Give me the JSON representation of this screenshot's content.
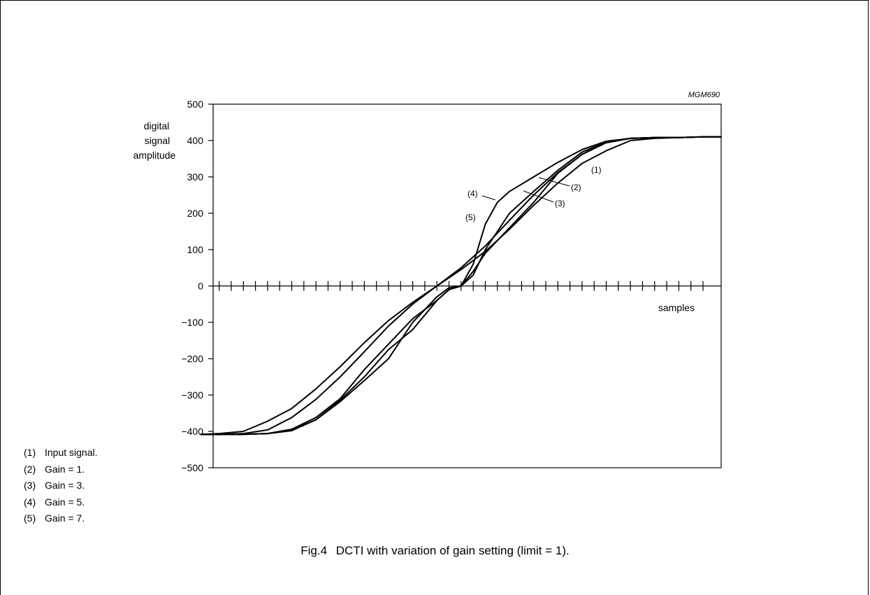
{
  "figure_id": "MGM690",
  "caption": {
    "number": "Fig.4",
    "text": "DCTI with variation of gain setting (limit = 1)."
  },
  "legend": [
    {
      "num": "(1)",
      "text": "Input signal."
    },
    {
      "num": "(2)",
      "text": "Gain = 1."
    },
    {
      "num": "(3)",
      "text": "Gain = 3."
    },
    {
      "num": "(4)",
      "text": "Gain = 5."
    },
    {
      "num": "(5)",
      "text": "Gain = 7."
    }
  ],
  "chart_data": {
    "type": "line",
    "title": "",
    "xlabel": "samples",
    "ylabel": "digital signal amplitude",
    "ylabel_lines": [
      "digital",
      "signal",
      "amplitude"
    ],
    "ylim": [
      -500,
      500
    ],
    "yticks": [
      500,
      400,
      300,
      200,
      100,
      0,
      -100,
      -200,
      -300,
      -400,
      -500
    ],
    "yticklabels": [
      "500",
      "400",
      "300",
      "200",
      "100",
      "0",
      "−100",
      "−200",
      "−300",
      "−400",
      "−500"
    ],
    "xlim": [
      -20.5,
      21.5
    ],
    "x_tick_positions": [
      -20,
      -19,
      -18,
      -17,
      -16,
      -15,
      -14,
      -13,
      -12,
      -11,
      -10,
      -9,
      -8,
      -7,
      -6,
      -5,
      -4,
      -3,
      -2,
      -1,
      0,
      1,
      2,
      3,
      4,
      5,
      6,
      7,
      8,
      9,
      10,
      11,
      12,
      13,
      14,
      15,
      16,
      17,
      18,
      19,
      20
    ],
    "series": [
      {
        "name": "(1)",
        "x": [
          -21.5,
          -20,
          -18,
          -16,
          -14,
          -12,
          -10,
          -8,
          -6,
          -4,
          -2,
          0,
          2,
          4,
          6,
          8,
          10,
          12,
          14,
          16,
          18,
          20,
          21.5
        ],
        "y": [
          -408,
          -406,
          -400,
          -372,
          -337,
          -283,
          -222,
          -156,
          -95,
          -45,
          0,
          45,
          95,
          156,
          222,
          283,
          337,
          372,
          400,
          406,
          408,
          410,
          410
        ]
      },
      {
        "name": "(2)",
        "x": [
          -21.5,
          -20,
          -18,
          -16,
          -14,
          -12,
          -10,
          -8,
          -6,
          -4,
          -2,
          0,
          2,
          4,
          6,
          8,
          10,
          12,
          14,
          16,
          18,
          20,
          21.5
        ],
        "y": [
          -408,
          -408,
          -406,
          -396,
          -362,
          -312,
          -250,
          -181,
          -110,
          -50,
          0,
          50,
          110,
          181,
          250,
          312,
          362,
          396,
          406,
          408,
          408,
          410,
          410
        ]
      },
      {
        "name": "(3)",
        "x": [
          -21.5,
          -20,
          -18,
          -16,
          -14,
          -12,
          -10,
          -8,
          -6,
          -4,
          -2,
          -1,
          0,
          1,
          2,
          4,
          6,
          8,
          10,
          12,
          14,
          16,
          18,
          20,
          21.5
        ],
        "y": [
          -408,
          -408,
          -408,
          -406,
          -394,
          -362,
          -310,
          -230,
          -160,
          -90,
          -40,
          -10,
          0,
          40,
          90,
          160,
          230,
          310,
          362,
          394,
          406,
          408,
          408,
          410,
          410
        ]
      },
      {
        "name": "(4)",
        "x": [
          -21.5,
          -20,
          -18,
          -16,
          -14,
          -12,
          -10,
          -8,
          -6,
          -4,
          -2,
          -1,
          0,
          1,
          2,
          4,
          6,
          8,
          10,
          12,
          14,
          16,
          18,
          20,
          21.5
        ],
        "y": [
          -408,
          -408,
          -408,
          -406,
          -396,
          -368,
          -318,
          -260,
          -200,
          -100,
          -30,
          -5,
          0,
          30,
          100,
          200,
          260,
          318,
          368,
          396,
          406,
          408,
          408,
          410,
          410
        ]
      },
      {
        "name": "(5)",
        "x": [
          -21.5,
          -20,
          -18,
          -16,
          -14,
          -12,
          -10,
          -8,
          -6,
          -4,
          -2,
          -1,
          0,
          1,
          2,
          3,
          4,
          6,
          8,
          10,
          12,
          14,
          16,
          18,
          20,
          21.5
        ],
        "y": [
          -408,
          -408,
          -408,
          -406,
          -398,
          -368,
          -314,
          -250,
          -175,
          -120,
          -40,
          -10,
          0,
          60,
          170,
          230,
          260,
          300,
          340,
          375,
          398,
          406,
          408,
          408,
          410,
          410
        ]
      }
    ],
    "annotations": [
      {
        "label": "(1)",
        "x": 11.8,
        "y": 325
      },
      {
        "label": "(2)",
        "x": 10.5,
        "y": 272
      },
      {
        "label": "(3)",
        "x": 8.5,
        "y": 225
      },
      {
        "label": "(4)",
        "x": 0.9,
        "y": 250
      },
      {
        "label": "(5)",
        "x": 0.2,
        "y": 188
      }
    ],
    "grid": false,
    "legend_placement": "bottom-left, outside plot"
  }
}
